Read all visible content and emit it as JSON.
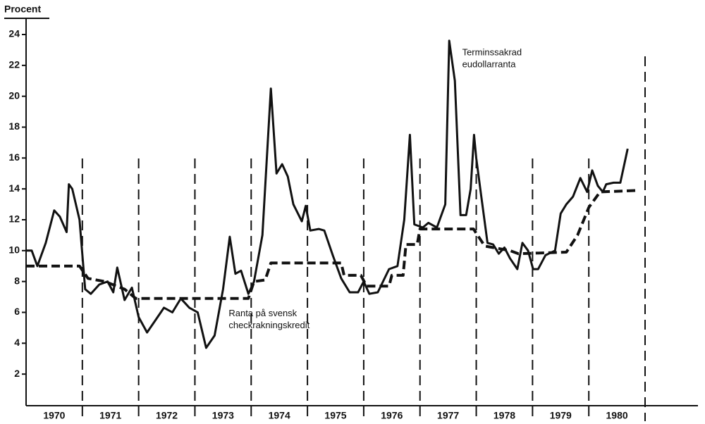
{
  "chart_data": {
    "type": "line",
    "y_label": "Procent",
    "xlim": [
      1970,
      1981
    ],
    "xticks": [
      1970,
      1971,
      1972,
      1973,
      1974,
      1975,
      1976,
      1977,
      1978,
      1979,
      1980
    ],
    "ylim": [
      0,
      24
    ],
    "yticks": [
      2,
      4,
      6,
      8,
      10,
      12,
      14,
      16,
      18,
      20,
      22,
      24
    ],
    "annotations": [
      {
        "lines": [
          "Terminssakrad",
          "eudollarranta"
        ],
        "x": 1977.75,
        "y": 22.8
      },
      {
        "lines": [
          "Ranta på svensk",
          "checkrakningskredit"
        ],
        "x": 1973.6,
        "y": 5.9
      }
    ],
    "series": [
      {
        "color": "#111111",
        "style": "solid",
        "x": [
          1970.0,
          1970.1,
          1970.2,
          1970.35,
          1970.5,
          1970.6,
          1970.72,
          1970.76,
          1970.82,
          1970.95,
          1971.05,
          1971.15,
          1971.3,
          1971.45,
          1971.55,
          1971.62,
          1971.75,
          1971.88,
          1972.0,
          1972.15,
          1972.3,
          1972.45,
          1972.6,
          1972.75,
          1972.9,
          1973.05,
          1973.2,
          1973.35,
          1973.5,
          1973.62,
          1973.72,
          1973.82,
          1973.95,
          1974.05,
          1974.2,
          1974.35,
          1974.45,
          1974.55,
          1974.65,
          1974.75,
          1974.9,
          1974.97,
          1975.05,
          1975.2,
          1975.3,
          1975.45,
          1975.6,
          1975.75,
          1975.9,
          1976.0,
          1976.1,
          1976.25,
          1976.45,
          1976.6,
          1976.72,
          1976.82,
          1976.9,
          1977.05,
          1977.15,
          1977.3,
          1977.45,
          1977.52,
          1977.62,
          1977.72,
          1977.82,
          1977.9,
          1977.96,
          1978.0,
          1978.09,
          1978.2,
          1978.3,
          1978.4,
          1978.5,
          1978.6,
          1978.73,
          1978.82,
          1978.92,
          1979.01,
          1979.1,
          1979.23,
          1979.4,
          1979.5,
          1979.6,
          1979.72,
          1979.85,
          1979.97,
          1980.06,
          1980.16,
          1980.25,
          1980.31,
          1980.44,
          1980.56,
          1980.69
        ],
        "values": [
          10,
          10,
          9,
          10.5,
          12.6,
          12.2,
          11.2,
          14.3,
          14,
          12,
          7.5,
          7.2,
          7.8,
          8,
          7.3,
          8.9,
          6.8,
          7.6,
          5.7,
          4.7,
          5.5,
          6.3,
          6,
          6.9,
          6.3,
          6,
          3.7,
          4.5,
          7.5,
          10.9,
          8.5,
          8.7,
          7.2,
          8,
          11,
          20.5,
          15,
          15.6,
          14.8,
          13,
          11.9,
          12.9,
          11.3,
          11.4,
          11.3,
          9.7,
          8.2,
          7.3,
          7.3,
          8,
          7.2,
          7.3,
          8.8,
          9,
          12,
          17.5,
          11.7,
          11.5,
          11.8,
          11.5,
          13,
          23.6,
          21,
          12.3,
          12.3,
          14,
          17.5,
          16,
          13.5,
          10.5,
          10.4,
          9.8,
          10.2,
          9.5,
          8.8,
          10.5,
          10,
          8.8,
          8.8,
          9.7,
          10,
          12.4,
          13,
          13.5,
          14.7,
          13.8,
          15.2,
          14.2,
          13.8,
          14.3,
          14.4,
          14.4,
          16.6
        ]
      },
      {
        "color": "#111111",
        "style": "dashed",
        "x": [
          1970.0,
          1970.95,
          1971.1,
          1971.4,
          1971.75,
          1971.95,
          1973.95,
          1974.05,
          1974.25,
          1974.35,
          1975.6,
          1975.65,
          1975.95,
          1976.05,
          1976.45,
          1976.5,
          1976.7,
          1976.75,
          1976.95,
          1977.0,
          1977.95,
          1978.15,
          1978.6,
          1978.75,
          1979.6,
          1979.8,
          1980.0,
          1980.2,
          1980.85
        ],
        "values": [
          9,
          9,
          8.2,
          8,
          7.5,
          6.9,
          6.9,
          8,
          8.1,
          9.2,
          9.2,
          8.4,
          8.4,
          7.7,
          7.7,
          8.4,
          8.4,
          10.4,
          10.4,
          11.4,
          11.4,
          10.3,
          10,
          9.8,
          9.9,
          11,
          12.8,
          13.8,
          13.9
        ]
      }
    ]
  }
}
